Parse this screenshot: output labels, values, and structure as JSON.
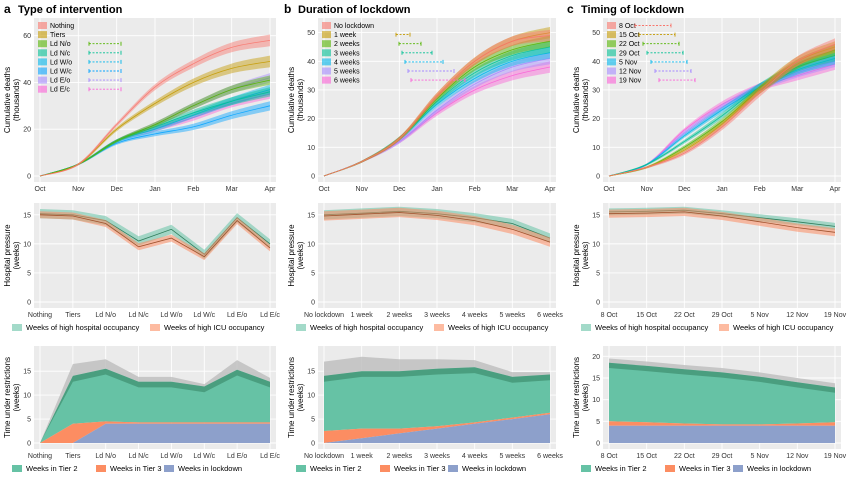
{
  "colors": {
    "panel_bg": "#ebebeb",
    "grid": "#ffffff",
    "tier2": "#66c2a5",
    "tier3": "#fc8d62",
    "lockdown": "#8da0cb",
    "hospital": "#66c2a5",
    "icu": "#fc8d62",
    "grey_band": "#bdbdbd"
  },
  "columns": [
    {
      "letter": "a",
      "title": "Type of intervention"
    },
    {
      "letter": "b",
      "title": "Duration of lockdown"
    },
    {
      "letter": "c",
      "title": "Timing of lockdown"
    }
  ],
  "legends": {
    "hospital": [
      "Weeks of high hospital occupancy",
      "Weeks of high ICU occupancy"
    ],
    "restrictions": [
      "Weeks in Tier 2",
      "Weeks in Tier 3",
      "Weeks in lockdown"
    ]
  },
  "chart_data": [
    {
      "type": "area",
      "panel": "a-top",
      "title": "Type of intervention",
      "ylabel": "Cumulative deaths (thousands)",
      "x_ticks": [
        "Oct",
        "Nov",
        "Dec",
        "Jan",
        "Feb",
        "Mar",
        "Apr"
      ],
      "ylim": [
        0,
        65
      ],
      "y_ticks": [
        0,
        20,
        40,
        60
      ],
      "legend_position": "top-left",
      "series": [
        {
          "name": "Nothing",
          "color": "#f8766d",
          "values": [
            0,
            5,
            22,
            38,
            48,
            55,
            58
          ],
          "spread": 2.5
        },
        {
          "name": "Tiers",
          "color": "#c49a00",
          "values": [
            0,
            5,
            20,
            31,
            40,
            46,
            49
          ],
          "spread": 2.5
        },
        {
          "name": "Ld N/o",
          "color": "#53b400",
          "values": [
            0,
            5,
            15,
            22,
            30,
            37,
            41
          ],
          "spread": 2
        },
        {
          "name": "Ld N/c",
          "color": "#00c094",
          "values": [
            0,
            5,
            15,
            21,
            27,
            32,
            36
          ],
          "spread": 2
        },
        {
          "name": "Ld W/o",
          "color": "#00b6eb",
          "values": [
            0,
            5,
            15,
            20,
            26,
            32,
            37
          ],
          "spread": 2
        },
        {
          "name": "Ld W/c",
          "color": "#06a4ff",
          "values": [
            0,
            5,
            14,
            18,
            21,
            26,
            30
          ],
          "spread": 2
        },
        {
          "name": "Ld E/o",
          "color": "#a58aff",
          "values": [
            0,
            5,
            15,
            22,
            30,
            37,
            42
          ],
          "spread": 2
        },
        {
          "name": "Ld E/c",
          "color": "#fb61d7",
          "values": [
            0,
            5,
            15,
            20,
            25,
            31,
            35
          ],
          "spread": 2
        }
      ]
    },
    {
      "type": "area",
      "panel": "b-top",
      "title": "Duration of lockdown",
      "ylabel": "Cumulative deaths (thousands)",
      "x_ticks": [
        "Oct",
        "Nov",
        "Dec",
        "Jan",
        "Feb",
        "Mar",
        "Apr"
      ],
      "ylim": [
        0,
        53
      ],
      "y_ticks": [
        0,
        10,
        20,
        30,
        40,
        50
      ],
      "legend_position": "top-left",
      "series": [
        {
          "name": "No lockdown",
          "color": "#f8766d",
          "values": [
            0,
            5,
            13,
            28,
            40,
            47,
            49
          ],
          "spread": 2
        },
        {
          "name": "1 week",
          "color": "#c49a00",
          "values": [
            0,
            5,
            13,
            28,
            40,
            47,
            50
          ],
          "spread": 2
        },
        {
          "name": "2 weeks",
          "color": "#53b400",
          "values": [
            0,
            5,
            13,
            27,
            38,
            44,
            47
          ],
          "spread": 2
        },
        {
          "name": "3 weeks",
          "color": "#00c094",
          "values": [
            0,
            5,
            13,
            26,
            36,
            42,
            45
          ],
          "spread": 2
        },
        {
          "name": "4 weeks",
          "color": "#00b6eb",
          "values": [
            0,
            5,
            13,
            25,
            34,
            40,
            43
          ],
          "spread": 2
        },
        {
          "name": "5 weeks",
          "color": "#a58aff",
          "values": [
            0,
            5,
            12,
            23,
            32,
            38,
            41
          ],
          "spread": 2
        },
        {
          "name": "6 weeks",
          "color": "#fb61d7",
          "values": [
            0,
            5,
            12,
            22,
            30,
            35,
            38
          ],
          "spread": 2
        }
      ]
    },
    {
      "type": "area",
      "panel": "c-top",
      "title": "Timing of lockdown",
      "ylabel": "Cumulative deaths (thousands)",
      "x_ticks": [
        "Oct",
        "Nov",
        "Dec",
        "Jan",
        "Feb",
        "Mar",
        "Apr"
      ],
      "ylim": [
        0,
        53
      ],
      "y_ticks": [
        0,
        10,
        20,
        30,
        40,
        50
      ],
      "legend_position": "top-left",
      "series": [
        {
          "name": "8 Oct",
          "color": "#f8766d",
          "values": [
            0,
            3,
            8,
            17,
            29,
            40,
            46
          ],
          "spread": 2
        },
        {
          "name": "15 Oct",
          "color": "#c49a00",
          "values": [
            0,
            3,
            9,
            18,
            30,
            40,
            45
          ],
          "spread": 2
        },
        {
          "name": "22 Oct",
          "color": "#53b400",
          "values": [
            0,
            3,
            10,
            19,
            30,
            39,
            44
          ],
          "spread": 2
        },
        {
          "name": "29 Oct",
          "color": "#00c094",
          "values": [
            0,
            4,
            12,
            21,
            31,
            38,
            42
          ],
          "spread": 2
        },
        {
          "name": "5 Nov",
          "color": "#00b6eb",
          "values": [
            0,
            4,
            14,
            23,
            31,
            37,
            41
          ],
          "spread": 2
        },
        {
          "name": "12 Nov",
          "color": "#a58aff",
          "values": [
            0,
            4,
            15,
            24,
            31,
            36,
            40
          ],
          "spread": 2
        },
        {
          "name": "19 Nov",
          "color": "#fb61d7",
          "values": [
            0,
            4,
            16,
            25,
            31,
            35,
            39
          ],
          "spread": 2
        }
      ]
    },
    {
      "type": "line",
      "panel": "a-mid",
      "ylabel": "Hospital pressure (weeks)",
      "categories": [
        "Nothing",
        "Tiers",
        "Ld N/o",
        "Ld N/c",
        "Ld W/o",
        "Ld W/c",
        "Ld E/o",
        "Ld E/c"
      ],
      "ylim": [
        0,
        16
      ],
      "y_ticks": [
        0,
        5,
        10,
        15
      ],
      "legend_position": "bottom",
      "series": [
        {
          "name": "Weeks of high hospital occupancy",
          "values": [
            15.2,
            15,
            14,
            10.5,
            12.5,
            8.2,
            14.5,
            10
          ],
          "spread": 0.8
        },
        {
          "name": "Weeks of high ICU occupancy",
          "values": [
            15,
            14.8,
            13.5,
            9.5,
            11,
            7.8,
            14,
            9.3
          ],
          "spread": 0.6
        }
      ]
    },
    {
      "type": "line",
      "panel": "b-mid",
      "ylabel": "Hospital pressure (weeks)",
      "categories": [
        "No lockdown",
        "1 week",
        "2 weeks",
        "3 weeks",
        "4 weeks",
        "5 weeks",
        "6 weeks"
      ],
      "ylim": [
        0,
        16
      ],
      "y_ticks": [
        0,
        5,
        10,
        15
      ],
      "legend_position": "bottom",
      "series": [
        {
          "name": "Weeks of high hospital occupancy",
          "values": [
            15,
            15.3,
            15.6,
            15.2,
            14.5,
            13.5,
            11
          ],
          "spread": 0.8
        },
        {
          "name": "Weeks of high ICU occupancy",
          "values": [
            14.8,
            15.1,
            15.4,
            14.9,
            14,
            12.5,
            10.3
          ],
          "spread": 0.8
        }
      ]
    },
    {
      "type": "line",
      "panel": "c-mid",
      "ylabel": "Hospital pressure (weeks)",
      "categories": [
        "8 Oct",
        "15 Oct",
        "22 Oct",
        "29 Oct",
        "5 Nov",
        "12 Nov",
        "19 Nov"
      ],
      "ylim": [
        0,
        16
      ],
      "y_ticks": [
        0,
        5,
        10,
        15
      ],
      "legend_position": "bottom",
      "series": [
        {
          "name": "Weeks of high hospital occupancy",
          "values": [
            15.5,
            15.6,
            15.8,
            15.2,
            14.5,
            13.8,
            13
          ],
          "spread": 0.6
        },
        {
          "name": "Weeks of high ICU occupancy",
          "values": [
            15.2,
            15.3,
            15.5,
            14.8,
            13.8,
            12.8,
            12
          ],
          "spread": 0.7
        }
      ]
    },
    {
      "type": "area",
      "panel": "a-bot",
      "ylabel": "Time under restrictions (weeks)",
      "categories": [
        "Nothing",
        "Tiers",
        "Ld N/o",
        "Ld N/c",
        "Ld W/o",
        "Ld W/c",
        "Ld E/o",
        "Ld E/c"
      ],
      "ylim": [
        0,
        19
      ],
      "y_ticks": [
        0,
        5,
        10,
        15
      ],
      "legend_position": "bottom",
      "series": [
        {
          "name": "Weeks in lockdown",
          "values": [
            0,
            0,
            4,
            4,
            4,
            4,
            4,
            4
          ]
        },
        {
          "name": "Weeks in Tier 3",
          "values": [
            0,
            4,
            0.5,
            0.3,
            0.3,
            0.3,
            0.3,
            0.3
          ]
        },
        {
          "name": "Weeks in Tier 2",
          "values": [
            0,
            10,
            11,
            8.5,
            8.5,
            7.5,
            11,
            8.5
          ]
        },
        {
          "name": "uncertainty",
          "values": [
            0,
            2.5,
            2,
            1,
            1,
            0.5,
            2,
            0.8
          ]
        }
      ]
    },
    {
      "type": "area",
      "panel": "b-bot",
      "ylabel": "Time under restrictions (weeks)",
      "categories": [
        "No lockdown",
        "1 week",
        "2 weeks",
        "3 weeks",
        "4 weeks",
        "5 weeks",
        "6 weeks"
      ],
      "ylim": [
        0,
        19
      ],
      "y_ticks": [
        0,
        5,
        10,
        15
      ],
      "legend_position": "bottom",
      "series": [
        {
          "name": "Weeks in lockdown",
          "values": [
            0,
            1,
            2,
            3,
            4,
            5,
            6
          ]
        },
        {
          "name": "Weeks in Tier 3",
          "values": [
            2.5,
            2,
            1,
            0.5,
            0.3,
            0.3,
            0.3
          ]
        },
        {
          "name": "Weeks in Tier 2",
          "values": [
            11.5,
            12,
            12,
            12,
            11.5,
            8.5,
            8
          ]
        },
        {
          "name": "uncertainty",
          "values": [
            3,
            3,
            2.5,
            2,
            1.5,
            1,
            0.5
          ]
        }
      ]
    },
    {
      "type": "area",
      "panel": "c-bot",
      "ylabel": "Time under restrictions (weeks)",
      "categories": [
        "8 Oct",
        "15 Oct",
        "22 Oct",
        "29 Oct",
        "5 Nov",
        "12 Nov",
        "19 Nov"
      ],
      "ylim": [
        0,
        21
      ],
      "y_ticks": [
        0,
        5,
        10,
        15,
        20
      ],
      "legend_position": "bottom",
      "series": [
        {
          "name": "Weeks in lockdown",
          "values": [
            4,
            4,
            4,
            4,
            4,
            4,
            4
          ]
        },
        {
          "name": "Weeks in Tier 3",
          "values": [
            1,
            0.8,
            0.5,
            0.3,
            0.3,
            0.5,
            0.8
          ]
        },
        {
          "name": "Weeks in Tier 2",
          "values": [
            13.5,
            13,
            12.5,
            12,
            11,
            9.5,
            8
          ]
        },
        {
          "name": "uncertainty",
          "values": [
            1,
            1,
            1,
            1,
            1,
            1,
            1
          ]
        }
      ]
    }
  ]
}
